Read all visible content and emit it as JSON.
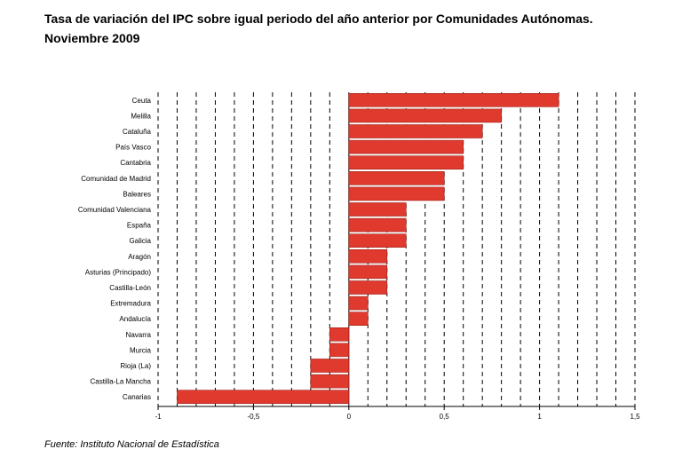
{
  "header": {
    "title_line1": "Tasa de variación del IPC sobre igual periodo del año anterior por Comunidades Autónomas.",
    "title_line2": "Noviembre 2009"
  },
  "footer": {
    "source": "Fuente: Instituto Nacional de Estadística"
  },
  "chart_data": {
    "type": "bar",
    "orientation": "horizontal",
    "title": "Tasa de variación del IPC sobre igual periodo del año anterior por Comunidades Autónomas. Noviembre 2009",
    "categories": [
      "Ceuta",
      "Melilla",
      "Cataluña",
      "País Vasco",
      "Cantabria",
      "Comunidad de Madrid",
      "Baleares",
      "Comunidad Valenciana",
      "España",
      "Galicia",
      "Aragón",
      "Asturias (Principado)",
      "Castilla-León",
      "Extremadura",
      "Andalucía",
      "Navarra",
      "Murcia",
      "Rioja (La)",
      "Castilla-La Mancha",
      "Canarias"
    ],
    "values": [
      1.1,
      0.8,
      0.7,
      0.6,
      0.6,
      0.5,
      0.5,
      0.3,
      0.3,
      0.3,
      0.2,
      0.2,
      0.2,
      0.1,
      0.1,
      -0.1,
      -0.1,
      -0.2,
      -0.2,
      -0.9
    ],
    "xlim": [
      -1,
      1.5
    ],
    "xticks": [
      -1,
      -0.5,
      0,
      0.5,
      1,
      1.5
    ],
    "xtick_labels": [
      "-1",
      "-0,5",
      "0",
      "0,5",
      "1",
      "1,5"
    ],
    "grid_step": 0.1,
    "grid": "vertical-dashed",
    "bar_color": "#e03a2f",
    "legend": "none"
  }
}
